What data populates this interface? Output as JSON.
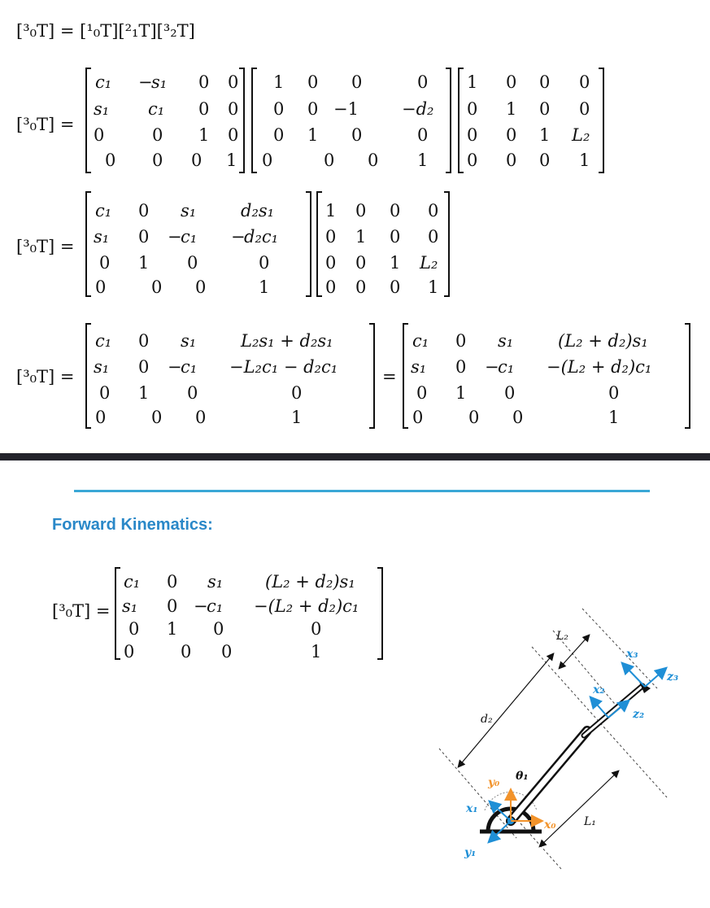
{
  "equations": {
    "composition": "[³₀T] = [¹₀T][²₁T][³₂T]",
    "lhs": "[³₀T] =",
    "eq_sign": "="
  },
  "section": {
    "title": "Forward Kinematics:"
  },
  "diagram": {
    "labels": {
      "L1": "L₁",
      "L2": "L₂",
      "d2": "d₂",
      "x0": "x₀",
      "y0": "y₀",
      "theta1": "θ₁",
      "x1": "x₁",
      "y1": "y₁",
      "x2": "x₂",
      "z2": "z₂",
      "x3": "x₃",
      "z3": "z₃"
    },
    "colors": {
      "frame0": "#f2932b",
      "frame1_2": "#1f8fd6",
      "frame3": "#1f8fd6",
      "link": "#111111"
    }
  }
}
